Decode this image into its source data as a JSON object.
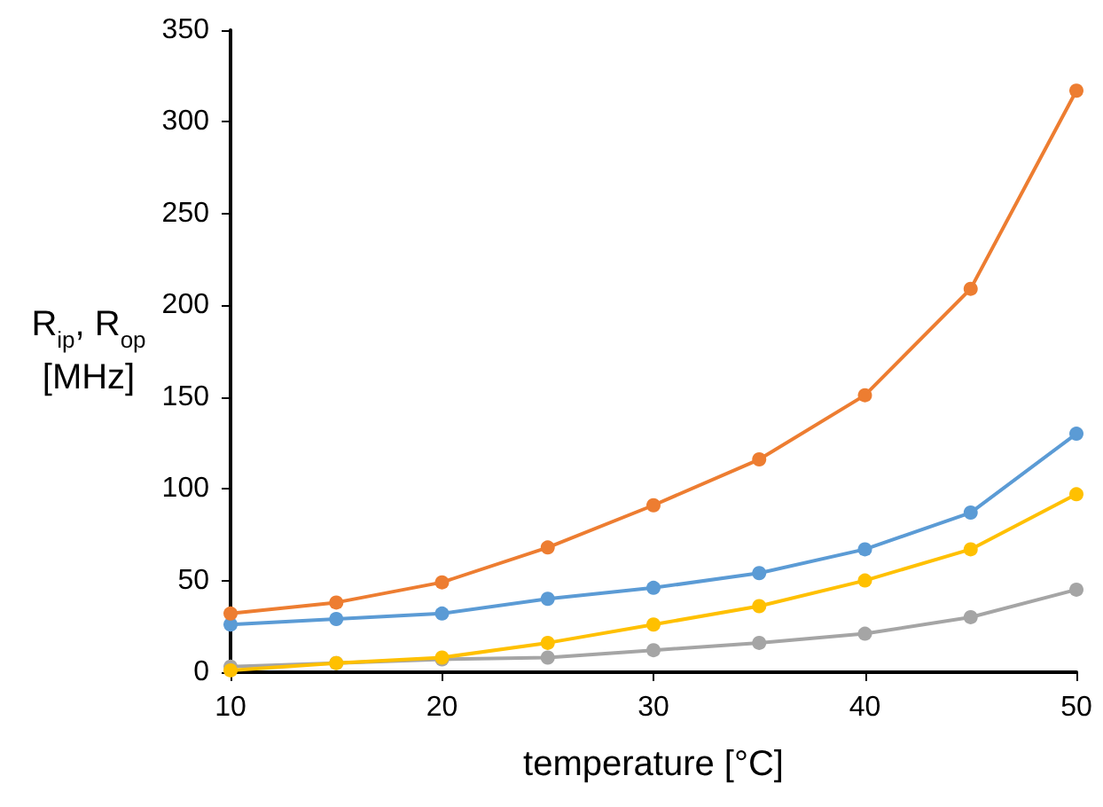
{
  "chart_data": {
    "type": "line",
    "xlabel": "temperature [°C]",
    "ylabel": "R$_{ip}$, R$_{op}$ [MHz]",
    "x": [
      10,
      15,
      20,
      25,
      30,
      35,
      40,
      45,
      50
    ],
    "series": [
      {
        "color": "#ed7d31",
        "values": [
          32,
          38,
          49,
          68,
          91,
          116,
          151,
          209,
          317
        ]
      },
      {
        "color": "#5b9bd5",
        "values": [
          26,
          29,
          32,
          40,
          46,
          54,
          67,
          87,
          130
        ]
      },
      {
        "color": "#ffc000",
        "values": [
          1,
          5,
          8,
          16,
          26,
          36,
          50,
          67,
          97
        ]
      },
      {
        "color": "#a5a5a5",
        "values": [
          3,
          5,
          7,
          8,
          12,
          16,
          21,
          30,
          45
        ]
      }
    ],
    "xlim": [
      10,
      50
    ],
    "xticks": [
      10,
      20,
      30,
      40,
      50
    ],
    "ylim": [
      0,
      350
    ],
    "yticks": [
      0,
      50,
      100,
      150,
      200,
      250,
      300,
      350
    ],
    "marker": "circle",
    "line_style": "solid"
  }
}
